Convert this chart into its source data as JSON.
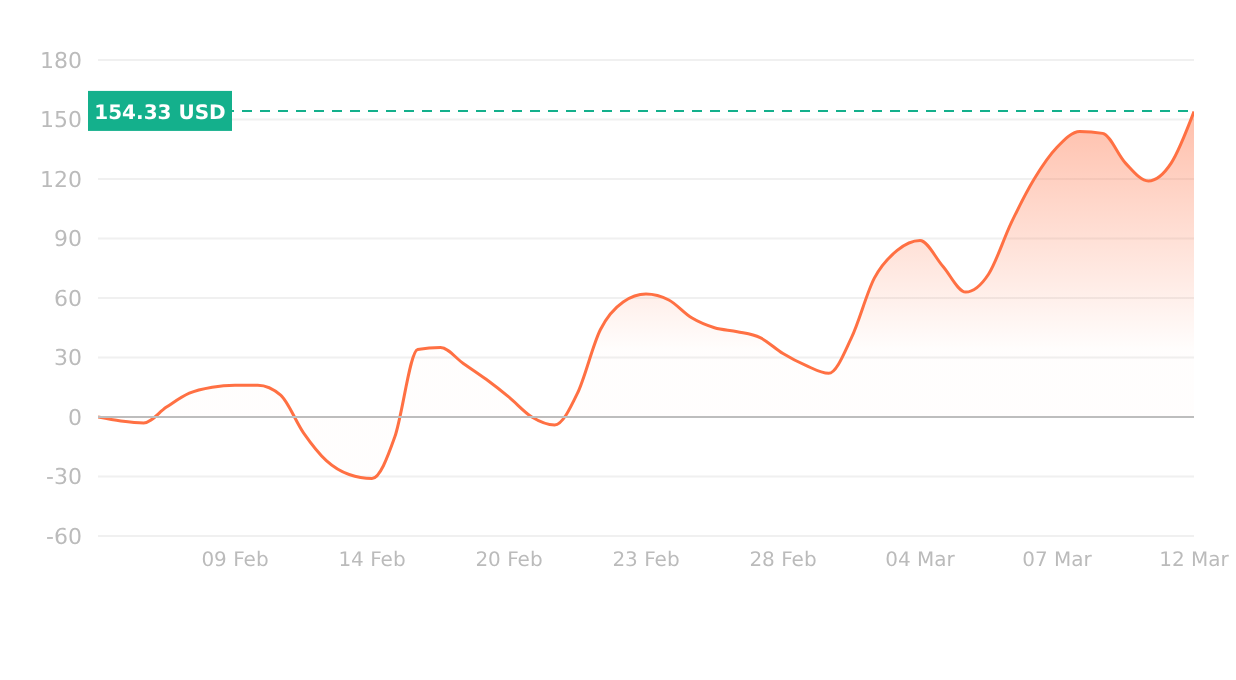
{
  "chart_data": {
    "type": "area",
    "categories": [
      null,
      null,
      null,
      null,
      null,
      null,
      "09 Feb",
      null,
      null,
      null,
      null,
      null,
      "14 Feb",
      null,
      null,
      null,
      null,
      null,
      "20 Feb",
      null,
      null,
      null,
      null,
      null,
      "23 Feb",
      null,
      null,
      null,
      null,
      null,
      "28 Feb",
      null,
      null,
      null,
      null,
      null,
      "04 Mar",
      null,
      null,
      null,
      null,
      null,
      "07 Mar",
      null,
      null,
      null,
      null,
      null,
      "12 Mar"
    ],
    "series": [
      {
        "color": "#ff7043",
        "values": [
          0,
          -2,
          -3,
          5,
          12,
          15,
          16,
          16,
          11,
          -8,
          -22,
          -29,
          -31,
          -10,
          34,
          35,
          27,
          19,
          10,
          0,
          -4,
          12,
          44,
          58,
          62,
          59,
          50,
          45,
          43,
          40,
          32,
          26,
          22,
          40,
          70,
          84,
          89,
          76,
          63,
          72,
          98,
          120,
          136,
          144,
          143,
          128,
          119,
          128,
          154
        ]
      }
    ],
    "ylim": [
      -60,
      180
    ],
    "yticks": [
      -60,
      -30,
      0,
      30,
      60,
      90,
      120,
      150,
      180
    ],
    "grid": "y",
    "ref_lines": [
      {
        "axis": "y",
        "value": 154.33,
        "label": "154.33 USD",
        "color": "#14b08c",
        "line_style": "dashed"
      }
    ]
  }
}
